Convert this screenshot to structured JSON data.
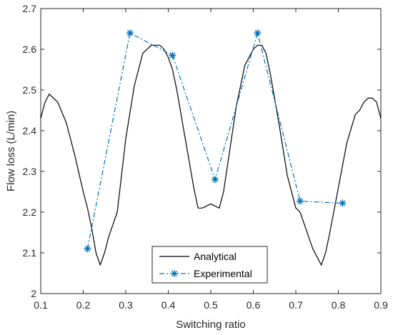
{
  "chart_data": {
    "type": "line",
    "xlabel": "Switching ratio",
    "ylabel": "Flow loss (L/min)",
    "xlim": [
      0.1,
      0.9
    ],
    "ylim": [
      2.0,
      2.7
    ],
    "xticks": [
      0.1,
      0.2,
      0.3,
      0.4,
      0.5,
      0.6,
      0.7,
      0.8,
      0.9
    ],
    "yticks": [
      2.0,
      2.1,
      2.2,
      2.3,
      2.4,
      2.5,
      2.6,
      2.7
    ],
    "xtick_labels": [
      "0.1",
      "0.2",
      "0.3",
      "0.4",
      "0.5",
      "0.6",
      "0.7",
      "0.8",
      "0.9"
    ],
    "ytick_labels": [
      "2",
      "2.1",
      "2.2",
      "2.3",
      "2.4",
      "2.5",
      "2.6",
      "2.7"
    ],
    "grid": true,
    "legend_position": "bottom-center",
    "series": [
      {
        "name": "Analytical",
        "color": "#000000",
        "line_style": "solid",
        "marker": "none",
        "x": [
          0.1,
          0.11,
          0.12,
          0.14,
          0.16,
          0.18,
          0.2,
          0.21,
          0.22,
          0.23,
          0.24,
          0.25,
          0.26,
          0.28,
          0.3,
          0.32,
          0.34,
          0.36,
          0.38,
          0.39,
          0.4,
          0.41,
          0.42,
          0.44,
          0.46,
          0.47,
          0.48,
          0.5,
          0.52,
          0.53,
          0.54,
          0.56,
          0.58,
          0.59,
          0.6,
          0.61,
          0.62,
          0.63,
          0.64,
          0.66,
          0.68,
          0.7,
          0.71,
          0.72,
          0.74,
          0.76,
          0.77,
          0.78,
          0.8,
          0.82,
          0.84,
          0.85,
          0.86,
          0.87,
          0.88,
          0.89,
          0.9
        ],
        "y": [
          2.43,
          2.47,
          2.49,
          2.47,
          2.42,
          2.34,
          2.25,
          2.21,
          2.16,
          2.1,
          2.07,
          2.1,
          2.14,
          2.2,
          2.38,
          2.51,
          2.59,
          2.61,
          2.61,
          2.6,
          2.58,
          2.55,
          2.5,
          2.38,
          2.26,
          2.21,
          2.21,
          2.22,
          2.21,
          2.25,
          2.32,
          2.46,
          2.56,
          2.58,
          2.6,
          2.61,
          2.61,
          2.59,
          2.54,
          2.42,
          2.29,
          2.21,
          2.2,
          2.17,
          2.11,
          2.07,
          2.1,
          2.15,
          2.26,
          2.37,
          2.44,
          2.45,
          2.47,
          2.48,
          2.48,
          2.47,
          2.43
        ]
      },
      {
        "name": "Experimental",
        "color": "#0072bd",
        "line_style": "dashdot",
        "marker": "asterisk",
        "x": [
          0.21,
          0.31,
          0.41,
          0.51,
          0.61,
          0.71,
          0.81
        ],
        "y": [
          2.11,
          2.64,
          2.585,
          2.28,
          2.64,
          2.227,
          2.222
        ]
      }
    ]
  }
}
